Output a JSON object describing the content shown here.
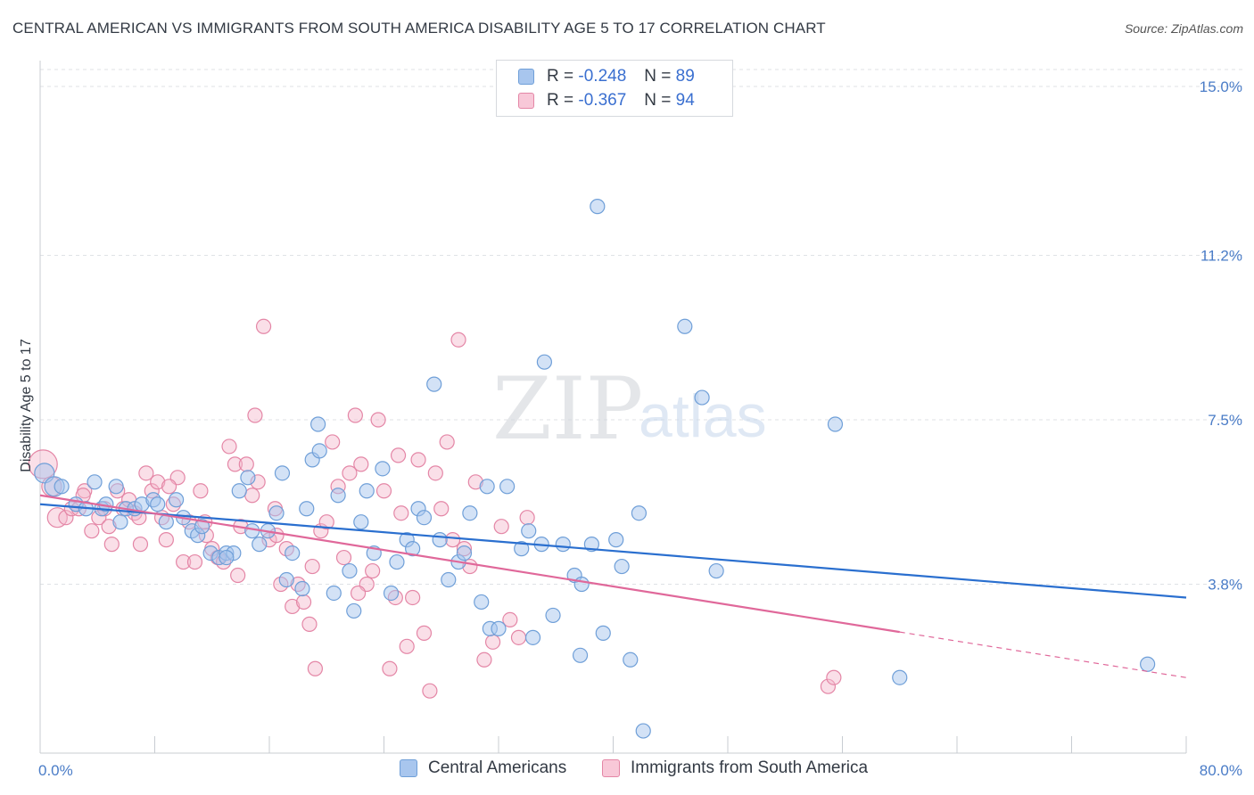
{
  "title": "CENTRAL AMERICAN VS IMMIGRANTS FROM SOUTH AMERICA DISABILITY AGE 5 TO 17 CORRELATION CHART",
  "source": "Source: ZipAtlas.com",
  "watermark": {
    "zip": "ZIP",
    "atlas": "atlas"
  },
  "legend": {
    "rows": [
      {
        "r_label": "R =",
        "r_value": "-0.248",
        "n_label": "N =",
        "n_value": "89"
      },
      {
        "r_label": "R =",
        "r_value": "-0.367",
        "n_label": "N =",
        "n_value": "94"
      }
    ]
  },
  "bottom_legend": {
    "series1": "Central Americans",
    "series2": "Immigrants from South America"
  },
  "colors": {
    "blue_fill": "#a8c6ee",
    "blue_stroke": "#6f9fd8",
    "blue_line": "#2a6fcf",
    "pink_fill": "#f4b8cc",
    "pink_stroke": "#e486a6",
    "pink_line": "#e0689a",
    "grid": "#dfe2e6",
    "tick_text": "#4a7cc7"
  },
  "chart_data": {
    "type": "scatter",
    "title": "CENTRAL AMERICAN VS IMMIGRANTS FROM SOUTH AMERICA DISABILITY AGE 5 TO 17 CORRELATION CHART",
    "ylabel": "Disability Age 5 to 17",
    "xlabel": "",
    "x_tick_labels": [
      "0.0%",
      "80.0%"
    ],
    "y_tick_labels": [
      "3.8%",
      "7.5%",
      "11.2%",
      "15.0%"
    ],
    "y_ticks": [
      3.8,
      7.5,
      11.2,
      15.0
    ],
    "xlim": [
      0,
      80
    ],
    "ylim": [
      0,
      15.5
    ],
    "grid": true,
    "legend_position": "top-center",
    "series": [
      {
        "name": "Central Americans",
        "color": "#a8c6ee",
        "r": -0.248,
        "n": 89,
        "trend": {
          "x": [
            0,
            80
          ],
          "y": [
            5.6,
            3.5
          ],
          "dashed_from": null
        },
        "points": [
          [
            0.3,
            6.3
          ],
          [
            1.0,
            6.0
          ],
          [
            1.5,
            6.0
          ],
          [
            2.5,
            5.6
          ],
          [
            3.2,
            5.5
          ],
          [
            3.8,
            6.1
          ],
          [
            4.3,
            5.5
          ],
          [
            4.6,
            5.6
          ],
          [
            5.3,
            6.0
          ],
          [
            5.6,
            5.2
          ],
          [
            6.0,
            5.5
          ],
          [
            6.6,
            5.5
          ],
          [
            7.1,
            5.6
          ],
          [
            7.9,
            5.7
          ],
          [
            8.8,
            5.2
          ],
          [
            9.5,
            5.7
          ],
          [
            10.0,
            5.3
          ],
          [
            10.6,
            5.0
          ],
          [
            11.0,
            4.9
          ],
          [
            11.3,
            5.1
          ],
          [
            11.9,
            4.5
          ],
          [
            12.5,
            4.4
          ],
          [
            13.0,
            4.5
          ],
          [
            13.5,
            4.5
          ],
          [
            13.9,
            5.9
          ],
          [
            14.5,
            6.2
          ],
          [
            14.8,
            5.0
          ],
          [
            15.3,
            4.7
          ],
          [
            15.9,
            5.0
          ],
          [
            16.5,
            5.4
          ],
          [
            16.9,
            6.3
          ],
          [
            17.2,
            3.9
          ],
          [
            17.6,
            4.5
          ],
          [
            18.3,
            3.7
          ],
          [
            18.6,
            5.5
          ],
          [
            19.0,
            6.6
          ],
          [
            19.5,
            6.8
          ],
          [
            19.4,
            7.4
          ],
          [
            20.8,
            5.8
          ],
          [
            21.6,
            4.1
          ],
          [
            21.9,
            3.2
          ],
          [
            22.4,
            5.2
          ],
          [
            22.8,
            5.9
          ],
          [
            23.3,
            4.5
          ],
          [
            23.9,
            6.4
          ],
          [
            24.5,
            3.6
          ],
          [
            24.9,
            4.3
          ],
          [
            25.6,
            4.8
          ],
          [
            26.0,
            4.6
          ],
          [
            26.4,
            5.5
          ],
          [
            26.8,
            5.3
          ],
          [
            27.5,
            8.3
          ],
          [
            27.9,
            4.8
          ],
          [
            28.5,
            3.9
          ],
          [
            29.2,
            4.3
          ],
          [
            29.6,
            4.5
          ],
          [
            30.0,
            5.4
          ],
          [
            30.8,
            3.4
          ],
          [
            31.2,
            6.0
          ],
          [
            31.4,
            2.8
          ],
          [
            32.0,
            2.8
          ],
          [
            32.6,
            6.0
          ],
          [
            33.6,
            4.6
          ],
          [
            34.1,
            5.0
          ],
          [
            34.4,
            2.6
          ],
          [
            35.0,
            4.7
          ],
          [
            35.2,
            8.8
          ],
          [
            35.8,
            3.1
          ],
          [
            36.5,
            4.7
          ],
          [
            37.3,
            4.0
          ],
          [
            37.7,
            2.2
          ],
          [
            37.8,
            3.8
          ],
          [
            38.5,
            4.7
          ],
          [
            38.9,
            12.3
          ],
          [
            39.3,
            2.7
          ],
          [
            40.2,
            4.8
          ],
          [
            40.6,
            4.2
          ],
          [
            41.2,
            2.1
          ],
          [
            41.8,
            5.4
          ],
          [
            42.1,
            0.5
          ],
          [
            45.0,
            9.6
          ],
          [
            46.2,
            8.0
          ],
          [
            47.2,
            4.1
          ],
          [
            55.5,
            7.4
          ],
          [
            60.0,
            1.7
          ],
          [
            77.3,
            2.0
          ],
          [
            8.2,
            5.6
          ],
          [
            13.0,
            4.4
          ],
          [
            20.5,
            3.6
          ]
        ]
      },
      {
        "name": "Immigrants from South America",
        "color": "#f4b8cc",
        "r": -0.367,
        "n": 94,
        "trend": {
          "x": [
            0,
            80
          ],
          "y": [
            5.8,
            1.7
          ],
          "dashed_from": 60
        },
        "points": [
          [
            0.2,
            6.5
          ],
          [
            0.8,
            6.0
          ],
          [
            1.2,
            5.3
          ],
          [
            1.8,
            5.3
          ],
          [
            2.2,
            5.5
          ],
          [
            2.7,
            5.5
          ],
          [
            3.1,
            5.9
          ],
          [
            3.6,
            5.0
          ],
          [
            4.1,
            5.3
          ],
          [
            4.5,
            5.5
          ],
          [
            4.8,
            5.1
          ],
          [
            5.0,
            4.7
          ],
          [
            5.4,
            5.9
          ],
          [
            5.8,
            5.5
          ],
          [
            6.2,
            5.7
          ],
          [
            6.6,
            5.4
          ],
          [
            7.0,
            4.7
          ],
          [
            7.4,
            6.3
          ],
          [
            7.8,
            5.9
          ],
          [
            8.2,
            6.1
          ],
          [
            8.5,
            5.3
          ],
          [
            8.8,
            4.8
          ],
          [
            9.3,
            5.6
          ],
          [
            9.6,
            6.2
          ],
          [
            10.0,
            4.3
          ],
          [
            10.4,
            5.2
          ],
          [
            10.8,
            4.3
          ],
          [
            11.2,
            5.9
          ],
          [
            11.6,
            4.9
          ],
          [
            12.0,
            4.6
          ],
          [
            12.4,
            4.4
          ],
          [
            12.8,
            4.3
          ],
          [
            13.2,
            6.9
          ],
          [
            13.6,
            6.5
          ],
          [
            14.0,
            5.1
          ],
          [
            14.4,
            6.5
          ],
          [
            14.8,
            5.8
          ],
          [
            15.2,
            6.1
          ],
          [
            15.6,
            9.6
          ],
          [
            16.0,
            4.8
          ],
          [
            16.4,
            5.5
          ],
          [
            16.8,
            3.8
          ],
          [
            17.2,
            4.6
          ],
          [
            17.6,
            3.3
          ],
          [
            18.0,
            3.8
          ],
          [
            18.4,
            3.4
          ],
          [
            18.8,
            2.9
          ],
          [
            19.2,
            1.9
          ],
          [
            19.6,
            5.0
          ],
          [
            20.0,
            5.2
          ],
          [
            20.4,
            7.0
          ],
          [
            20.8,
            6.0
          ],
          [
            21.2,
            4.4
          ],
          [
            21.6,
            6.3
          ],
          [
            22.0,
            7.6
          ],
          [
            22.4,
            6.5
          ],
          [
            22.8,
            3.8
          ],
          [
            23.2,
            4.1
          ],
          [
            23.6,
            7.5
          ],
          [
            24.0,
            5.9
          ],
          [
            24.4,
            1.9
          ],
          [
            24.8,
            3.5
          ],
          [
            25.2,
            5.4
          ],
          [
            25.6,
            2.4
          ],
          [
            26.0,
            3.5
          ],
          [
            26.4,
            6.6
          ],
          [
            26.8,
            2.7
          ],
          [
            27.2,
            1.4
          ],
          [
            27.6,
            6.3
          ],
          [
            28.0,
            5.5
          ],
          [
            28.4,
            7.0
          ],
          [
            28.8,
            4.8
          ],
          [
            29.2,
            9.3
          ],
          [
            29.6,
            4.6
          ],
          [
            30.0,
            4.2
          ],
          [
            30.4,
            6.1
          ],
          [
            31.0,
            2.1
          ],
          [
            31.6,
            2.5
          ],
          [
            32.2,
            5.1
          ],
          [
            32.8,
            3.0
          ],
          [
            33.4,
            2.6
          ],
          [
            34.0,
            5.3
          ],
          [
            55.0,
            1.5
          ],
          [
            55.4,
            1.7
          ],
          [
            3.0,
            5.8
          ],
          [
            6.9,
            5.3
          ],
          [
            9.0,
            6.0
          ],
          [
            11.5,
            5.2
          ],
          [
            15.0,
            7.6
          ],
          [
            16.5,
            4.9
          ],
          [
            19.0,
            4.2
          ],
          [
            22.2,
            3.6
          ],
          [
            25.0,
            6.7
          ],
          [
            13.8,
            4.0
          ]
        ]
      }
    ]
  }
}
